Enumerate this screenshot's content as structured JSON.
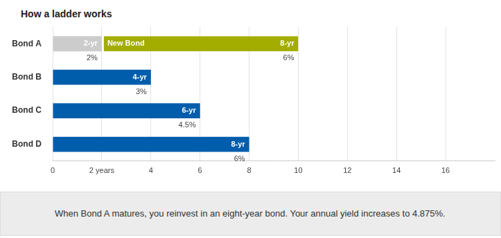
{
  "chart_data": {
    "type": "bar",
    "title": "How a ladder works",
    "annotation": "When Bond A matures, you reinvest in an eight-year bond. Your annual yield increases to 4.875%.",
    "orientation": "horizontal",
    "stacked": true,
    "grid": true,
    "data_labels": true,
    "categories": [
      "Bond A",
      "Bond B",
      "Bond C",
      "Bond D"
    ],
    "series": [
      {
        "colors": [
          "#cccccc",
          "#005dab",
          "#005dab",
          "#005dab"
        ],
        "values": [
          2,
          4,
          6,
          8
        ],
        "value_labels": [
          "2-yr",
          "4-yr",
          "6-yr",
          "8-yr"
        ],
        "yields": [
          2,
          3,
          4.5,
          6
        ],
        "yield_labels": [
          "2%",
          "3%",
          "4.5%",
          "6%"
        ]
      },
      {
        "name": "New Bond",
        "color": "#a3ad00",
        "values": [
          8,
          null,
          null,
          null
        ],
        "value_labels": [
          "8-yr",
          null,
          null,
          null
        ],
        "yields": [
          6,
          null,
          null,
          null
        ],
        "yield_labels": [
          "6%",
          null,
          null,
          null
        ]
      }
    ],
    "xlim": [
      0,
      18
    ],
    "xticks": [
      0,
      {
        "value": 2,
        "label": "2 years"
      },
      4,
      6,
      8,
      10,
      12,
      14,
      16
    ]
  }
}
